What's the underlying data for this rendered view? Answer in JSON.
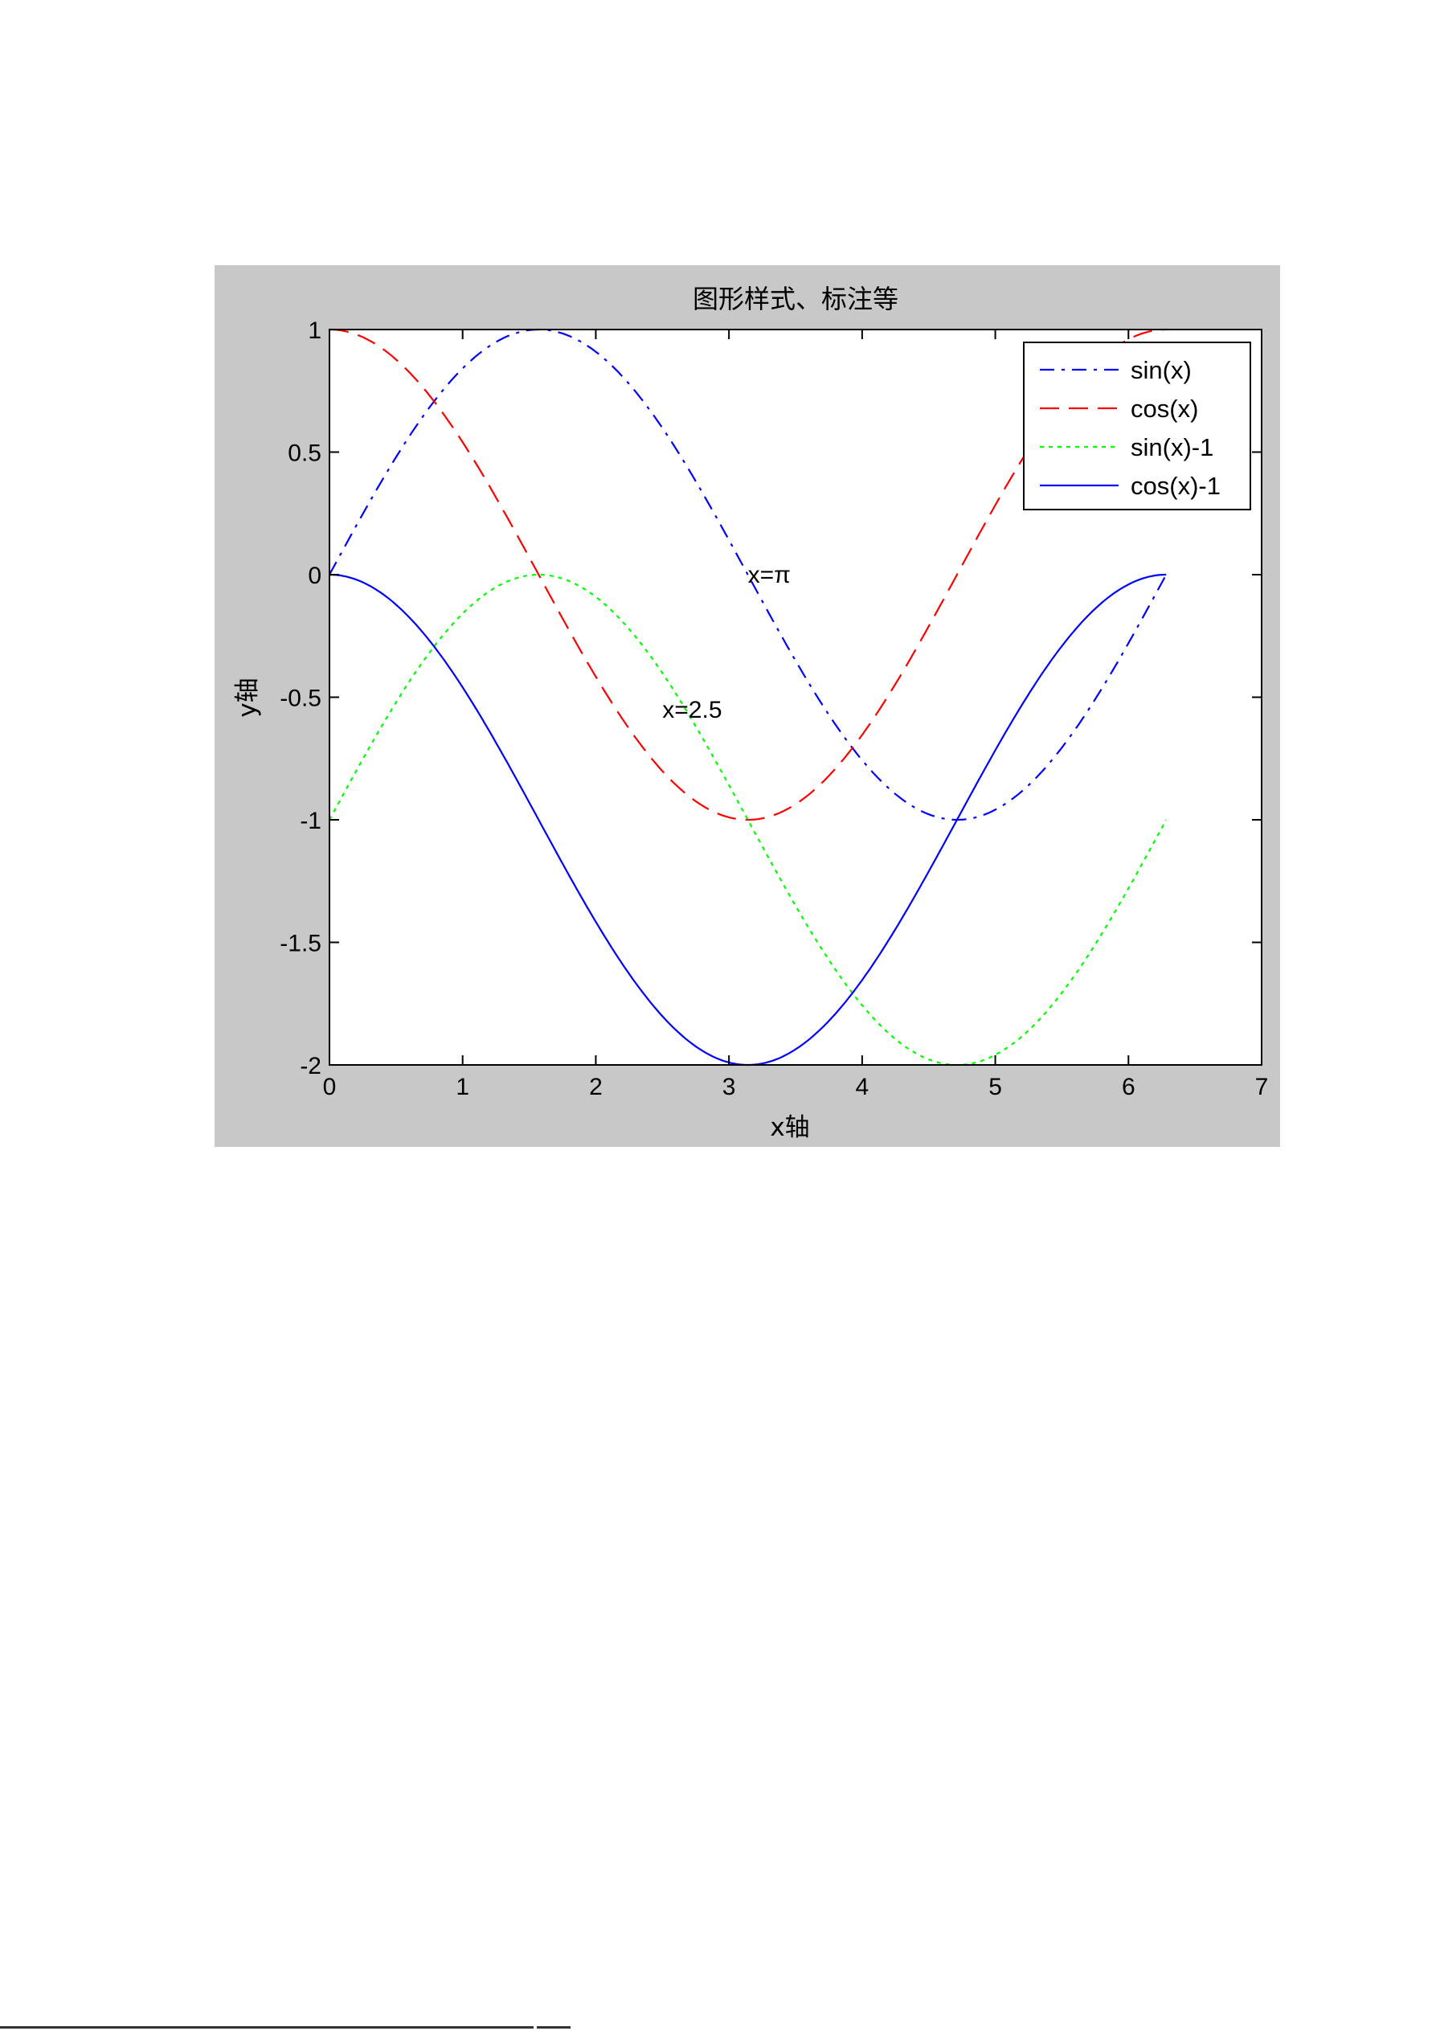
{
  "chart_data": {
    "type": "line",
    "title": "图形样式、标注等",
    "xlabel": "x轴",
    "ylabel": "y轴",
    "xlim": [
      0,
      7
    ],
    "ylim": [
      -2,
      1
    ],
    "xticks": [
      0,
      1,
      2,
      3,
      4,
      5,
      6,
      7
    ],
    "xtick_labels": [
      "0",
      "1",
      "2",
      "3",
      "4",
      "5",
      "6",
      "7"
    ],
    "yticks": [
      1,
      0.5,
      0,
      -0.5,
      -1,
      -1.5,
      -2
    ],
    "ytick_labels": [
      "1",
      "0.5",
      "0",
      "-0.5",
      "-1",
      "-1.5",
      "-2"
    ],
    "grid": false,
    "legend_position": "top-right",
    "x_range": [
      0,
      6.2832
    ],
    "series": [
      {
        "name": "sin(x)",
        "function": "sin(x)",
        "color": "#0000ff",
        "style": "dashdot"
      },
      {
        "name": "cos(x)",
        "function": "cos(x)",
        "color": "#ff0000",
        "style": "dashed"
      },
      {
        "name": "sin(x)-1",
        "function": "sin(x)-1",
        "color": "#00ff00",
        "style": "dotted"
      },
      {
        "name": "cos(x)-1",
        "function": "cos(x)-1",
        "color": "#0000ff",
        "style": "solid"
      }
    ],
    "annotations": [
      {
        "text": "x=π",
        "x": 3.1416,
        "y": 0
      },
      {
        "text": "x=2.5",
        "x": 2.5,
        "y": -0.55
      }
    ],
    "figure_background": "#c8c8c8",
    "axes_background": "#ffffff"
  }
}
